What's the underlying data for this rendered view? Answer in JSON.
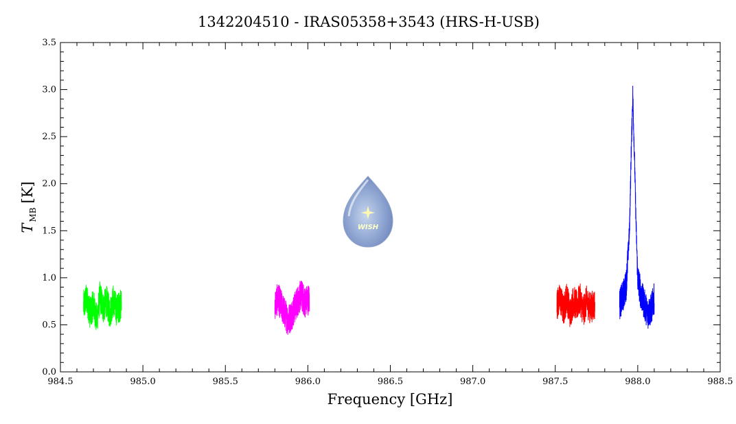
{
  "chart_data": {
    "type": "line",
    "title": "1342204510 - IRAS05358+3543 (HRS-H-USB)",
    "xlabel": "Frequency [GHz]",
    "ylabel_main": "T",
    "ylabel_sub": "MB",
    "ylabel_unit": "[K]",
    "xlim": [
      984.5,
      988.5
    ],
    "ylim": [
      0.0,
      3.5
    ],
    "x_ticks": [
      "984.5",
      "985.0",
      "985.5",
      "986.0",
      "986.5",
      "987.0",
      "987.5",
      "988.0",
      "988.5"
    ],
    "y_ticks": [
      "0.0",
      "0.5",
      "1.0",
      "1.5",
      "2.0",
      "2.5",
      "3.0",
      "3.5"
    ],
    "grid": false,
    "logo": "WISH",
    "series": [
      {
        "color": "#00ff00",
        "points": [
          [
            984.64,
            0.7
          ],
          [
            984.66,
            0.78
          ],
          [
            984.68,
            0.62
          ],
          [
            984.7,
            0.72
          ],
          [
            984.72,
            0.55
          ],
          [
            984.74,
            0.8
          ],
          [
            984.76,
            0.68
          ],
          [
            984.78,
            0.75
          ],
          [
            984.8,
            0.62
          ],
          [
            984.82,
            0.76
          ],
          [
            984.84,
            0.66
          ],
          [
            984.87,
            0.72
          ]
        ]
      },
      {
        "color": "#ff00ff",
        "points": [
          [
            985.8,
            0.72
          ],
          [
            985.82,
            0.78
          ],
          [
            985.84,
            0.7
          ],
          [
            985.86,
            0.62
          ],
          [
            985.88,
            0.55
          ],
          [
            985.9,
            0.6
          ],
          [
            985.92,
            0.68
          ],
          [
            985.94,
            0.76
          ],
          [
            985.96,
            0.82
          ],
          [
            985.98,
            0.74
          ],
          [
            986.01,
            0.78
          ]
        ]
      },
      {
        "color": "#ff0000",
        "points": [
          [
            987.51,
            0.72
          ],
          [
            987.53,
            0.78
          ],
          [
            987.55,
            0.65
          ],
          [
            987.57,
            0.8
          ],
          [
            987.59,
            0.62
          ],
          [
            987.61,
            0.76
          ],
          [
            987.63,
            0.7
          ],
          [
            987.65,
            0.78
          ],
          [
            987.67,
            0.64
          ],
          [
            987.69,
            0.75
          ],
          [
            987.71,
            0.68
          ],
          [
            987.74,
            0.72
          ]
        ]
      },
      {
        "color": "#0000ff",
        "points": [
          [
            987.89,
            0.72
          ],
          [
            987.91,
            0.8
          ],
          [
            987.93,
            0.92
          ],
          [
            987.95,
            1.5
          ],
          [
            987.96,
            2.3
          ],
          [
            987.97,
            2.95
          ],
          [
            987.98,
            2.3
          ],
          [
            987.99,
            1.55
          ],
          [
            988.0,
            1.0
          ],
          [
            988.02,
            0.82
          ],
          [
            988.04,
            0.72
          ],
          [
            988.06,
            0.62
          ],
          [
            988.08,
            0.66
          ],
          [
            988.1,
            0.78
          ]
        ]
      }
    ]
  }
}
